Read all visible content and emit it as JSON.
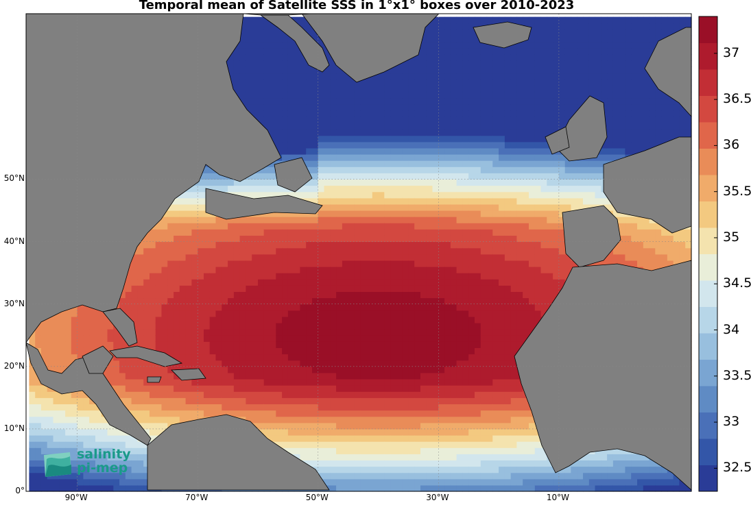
{
  "title": "Temporal mean of Satellite SSS in 1°x1° boxes over 2010-2023",
  "lat_labels": [
    {
      "text": "50°N",
      "lat": 50
    },
    {
      "text": "40°N",
      "lat": 40
    },
    {
      "text": "30°N",
      "lat": 30
    },
    {
      "text": "20°N",
      "lat": 20
    },
    {
      "text": "10°N",
      "lat": 10
    },
    {
      "text": "0°",
      "lat": 0
    }
  ],
  "lon_labels": [
    {
      "text": "90°W",
      "lon": -90
    },
    {
      "text": "70°W",
      "lon": -70
    },
    {
      "text": "50°W",
      "lon": -50
    },
    {
      "text": "30°W",
      "lon": -30
    },
    {
      "text": "10°W",
      "lon": -10
    }
  ],
  "colorbar": {
    "min": 32.25,
    "max": 37.4,
    "ticks": [
      "32.5",
      "33",
      "33.5",
      "34",
      "34.5",
      "35",
      "35.5",
      "36",
      "36.5",
      "37"
    ],
    "colors": [
      "#2a3c97",
      "#3356a8",
      "#4a70b8",
      "#5f8bc4",
      "#7aa5d2",
      "#98bfde",
      "#b7d6e8",
      "#d2e6ed",
      "#e9eed9",
      "#f4e3ae",
      "#f3c980",
      "#f0ab6a",
      "#e98c58",
      "#e0664a",
      "#d34840",
      "#c22e35",
      "#ae1b2d",
      "#9a0f27"
    ]
  },
  "logo": {
    "line1": "salinity",
    "line2": "pi-mep"
  }
}
